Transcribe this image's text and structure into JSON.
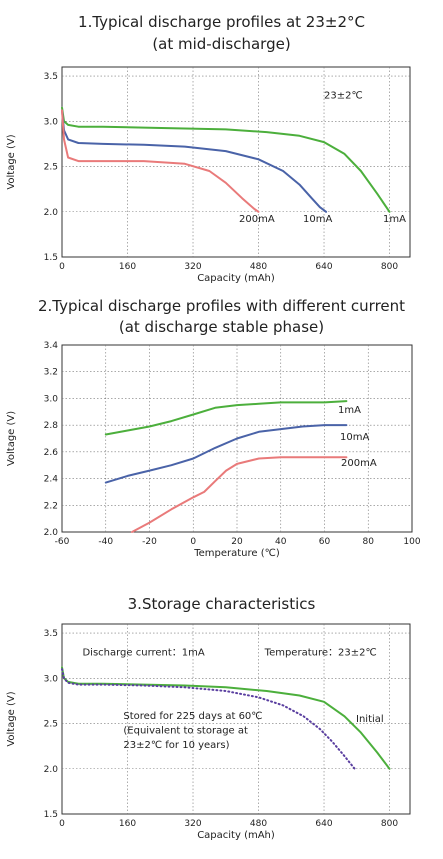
{
  "chart_data": [
    {
      "type": "line",
      "title": "1.Typical discharge profiles at 23±2°C",
      "subtitle": "(at mid-discharge)",
      "xlabel": "Capacity (mAh)",
      "ylabel": "Voltage (V)",
      "xlim": [
        0,
        850
      ],
      "ylim": [
        1.5,
        3.6
      ],
      "xticks": [
        0,
        160,
        320,
        480,
        640,
        800
      ],
      "yticks": [
        1.5,
        2.0,
        2.5,
        3.0,
        3.5
      ],
      "grid": true,
      "annotations": [
        {
          "text": "23±2℃",
          "x": 640,
          "y": 3.25
        }
      ],
      "series": [
        {
          "name": "1mA",
          "color": "#4caf3c",
          "x": [
            0,
            5,
            15,
            40,
            100,
            200,
            300,
            400,
            500,
            580,
            640,
            690,
            730,
            770,
            800
          ],
          "y": [
            3.15,
            3.0,
            2.96,
            2.94,
            2.94,
            2.93,
            2.92,
            2.91,
            2.88,
            2.84,
            2.77,
            2.64,
            2.45,
            2.2,
            2.0
          ]
        },
        {
          "name": "10mA",
          "color": "#4a63a8",
          "x": [
            0,
            5,
            15,
            40,
            100,
            200,
            300,
            400,
            480,
            540,
            580,
            610,
            630,
            645
          ],
          "y": [
            3.12,
            2.9,
            2.8,
            2.76,
            2.75,
            2.74,
            2.72,
            2.67,
            2.58,
            2.45,
            2.3,
            2.15,
            2.05,
            2.0
          ]
        },
        {
          "name": "200mA",
          "color": "#e97a7a",
          "x": [
            0,
            5,
            15,
            40,
            100,
            200,
            300,
            360,
            400,
            440,
            470,
            480
          ],
          "y": [
            3.12,
            2.8,
            2.6,
            2.56,
            2.56,
            2.56,
            2.53,
            2.45,
            2.32,
            2.15,
            2.03,
            2.0
          ]
        }
      ]
    },
    {
      "type": "line",
      "title": "2.Typical discharge profiles with different current",
      "subtitle": "(at discharge stable phase)",
      "xlabel": "Temperature (℃)",
      "ylabel": "Voltage (V)",
      "xlim": [
        -60,
        100
      ],
      "ylim": [
        2.0,
        3.4
      ],
      "xticks": [
        -60,
        -40,
        -20,
        0,
        20,
        40,
        60,
        80,
        100
      ],
      "yticks": [
        2.0,
        2.2,
        2.4,
        2.6,
        2.8,
        3.0,
        3.2,
        3.4
      ],
      "grid": true,
      "series": [
        {
          "name": "1mA",
          "color": "#4caf3c",
          "x": [
            -40,
            -30,
            -20,
            -10,
            0,
            10,
            20,
            30,
            40,
            50,
            60,
            70
          ],
          "y": [
            2.73,
            2.76,
            2.79,
            2.83,
            2.88,
            2.93,
            2.95,
            2.96,
            2.97,
            2.97,
            2.97,
            2.98
          ]
        },
        {
          "name": "10mA",
          "color": "#4a63a8",
          "x": [
            -40,
            -30,
            -20,
            -10,
            0,
            10,
            20,
            30,
            40,
            50,
            60,
            70
          ],
          "y": [
            2.37,
            2.42,
            2.46,
            2.5,
            2.55,
            2.63,
            2.7,
            2.75,
            2.77,
            2.79,
            2.8,
            2.8
          ]
        },
        {
          "name": "200mA",
          "color": "#e97a7a",
          "x": [
            -28,
            -20,
            -10,
            0,
            5,
            10,
            15,
            20,
            30,
            40,
            50,
            60,
            70
          ],
          "y": [
            2.0,
            2.07,
            2.17,
            2.26,
            2.3,
            2.38,
            2.46,
            2.51,
            2.55,
            2.56,
            2.56,
            2.56,
            2.56
          ]
        }
      ]
    },
    {
      "type": "line",
      "title": "3.Storage characteristics",
      "xlabel": "Capacity (mAh)",
      "ylabel": "Voltage (V)",
      "xlim": [
        0,
        850
      ],
      "ylim": [
        1.5,
        3.6
      ],
      "xticks": [
        0,
        160,
        320,
        480,
        640,
        800
      ],
      "yticks": [
        1.5,
        2.0,
        2.5,
        3.0,
        3.5
      ],
      "grid": true,
      "annotations": [
        {
          "text": "Discharge current：1mA",
          "x": 50,
          "y": 3.25
        },
        {
          "text": "Temperature：23±2℃",
          "x": 495,
          "y": 3.25
        },
        {
          "text": "Stored for 225 days at 60℃",
          "x": 150,
          "y": 2.55
        },
        {
          "text": "(Equivalent to storage at",
          "x": 150,
          "y": 2.39
        },
        {
          "text": "23±2℃ for 10 years)",
          "x": 150,
          "y": 2.23
        }
      ],
      "series": [
        {
          "name": "Initial",
          "color": "#4caf3c",
          "style": "solid",
          "x": [
            0,
            5,
            15,
            40,
            100,
            200,
            300,
            400,
            500,
            580,
            640,
            690,
            730,
            770,
            800
          ],
          "y": [
            3.12,
            3.0,
            2.96,
            2.94,
            2.94,
            2.93,
            2.92,
            2.9,
            2.86,
            2.81,
            2.74,
            2.58,
            2.4,
            2.18,
            2.0
          ]
        },
        {
          "name": "Stored",
          "color": "#5a3fa0",
          "style": "dotted",
          "x": [
            0,
            5,
            15,
            40,
            100,
            200,
            300,
            400,
            480,
            540,
            590,
            630,
            660,
            690,
            715
          ],
          "y": [
            3.1,
            3.0,
            2.95,
            2.93,
            2.93,
            2.92,
            2.9,
            2.86,
            2.79,
            2.7,
            2.58,
            2.44,
            2.3,
            2.14,
            2.0
          ]
        }
      ]
    }
  ]
}
